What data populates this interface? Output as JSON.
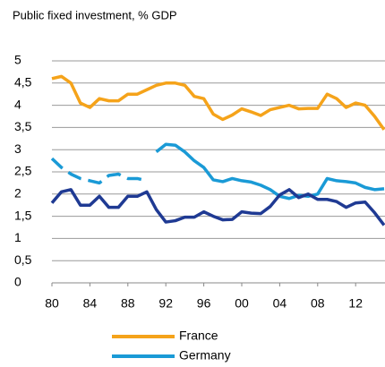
{
  "chart_data": {
    "type": "line",
    "title": "Public fixed investment, % GDP",
    "x": [
      1980,
      1981,
      1982,
      1983,
      1984,
      1985,
      1986,
      1987,
      1988,
      1989,
      1990,
      1991,
      1992,
      1993,
      1994,
      1995,
      1996,
      1997,
      1998,
      1999,
      2000,
      2001,
      2002,
      2003,
      2004,
      2005,
      2006,
      2007,
      2008,
      2009,
      2010,
      2011,
      2012,
      2013,
      2014,
      2015
    ],
    "series": [
      {
        "name": "France",
        "color": "#f5a31a",
        "values": [
          4.6,
          4.65,
          4.5,
          4.05,
          3.95,
          4.15,
          4.1,
          4.1,
          4.25,
          4.25,
          4.35,
          4.45,
          4.5,
          4.5,
          4.45,
          4.2,
          4.15,
          3.8,
          3.68,
          3.78,
          3.92,
          3.85,
          3.77,
          3.9,
          3.95,
          4.0,
          3.92,
          3.93,
          3.93,
          4.25,
          4.15,
          3.95,
          4.05,
          4.0,
          3.75,
          3.45
        ]
      },
      {
        "name": "Germany",
        "color": "#1a9ad6",
        "values": [
          null,
          null,
          null,
          null,
          null,
          null,
          null,
          null,
          null,
          null,
          null,
          2.95,
          3.12,
          3.1,
          2.95,
          2.75,
          2.6,
          2.32,
          2.28,
          2.35,
          2.3,
          2.27,
          2.2,
          2.1,
          1.95,
          1.9,
          1.97,
          1.95,
          2.0,
          2.35,
          2.3,
          2.28,
          2.25,
          2.15,
          2.1,
          2.12
        ]
      },
      {
        "color": "#1a9ad6",
        "dashed": true,
        "values": [
          2.8,
          2.6,
          2.45,
          2.35,
          2.3,
          2.25,
          2.42,
          2.45,
          2.35,
          2.35,
          2.3,
          null,
          null,
          null,
          null,
          null,
          null,
          null,
          null,
          null,
          null,
          null,
          null,
          null,
          null,
          null,
          null,
          null,
          null,
          null,
          null,
          null,
          null,
          null,
          null,
          null
        ]
      },
      {
        "color": "#1f3a93",
        "values": [
          1.8,
          2.05,
          2.1,
          1.75,
          1.75,
          1.95,
          1.7,
          1.7,
          1.95,
          1.95,
          2.05,
          1.65,
          1.37,
          1.4,
          1.48,
          1.48,
          1.6,
          1.5,
          1.42,
          1.43,
          1.6,
          1.57,
          1.56,
          1.72,
          1.98,
          2.1,
          1.92,
          2.0,
          1.88,
          1.88,
          1.83,
          1.7,
          1.8,
          1.82,
          1.58,
          1.3
        ]
      }
    ],
    "xlim": [
      1980,
      2015
    ],
    "xticks": [
      {
        "value": 1980,
        "label": "80"
      },
      {
        "value": 1984,
        "label": "84"
      },
      {
        "value": 1988,
        "label": "88"
      },
      {
        "value": 1992,
        "label": "92"
      },
      {
        "value": 1996,
        "label": "96"
      },
      {
        "value": 2000,
        "label": "00"
      },
      {
        "value": 2004,
        "label": "04"
      },
      {
        "value": 2008,
        "label": "08"
      },
      {
        "value": 2012,
        "label": "12"
      }
    ],
    "ylim": [
      0,
      5
    ],
    "yticks": [
      0,
      {
        "value": 0.5,
        "label": "0,5"
      },
      1,
      {
        "value": 1.5,
        "label": "1,5"
      },
      2,
      {
        "value": 2.5,
        "label": "2,5"
      },
      3,
      {
        "value": 3.5,
        "label": "3,5"
      },
      4,
      {
        "value": 4.5,
        "label": "4,5"
      },
      5
    ],
    "grid": true,
    "legend": "bottom"
  }
}
